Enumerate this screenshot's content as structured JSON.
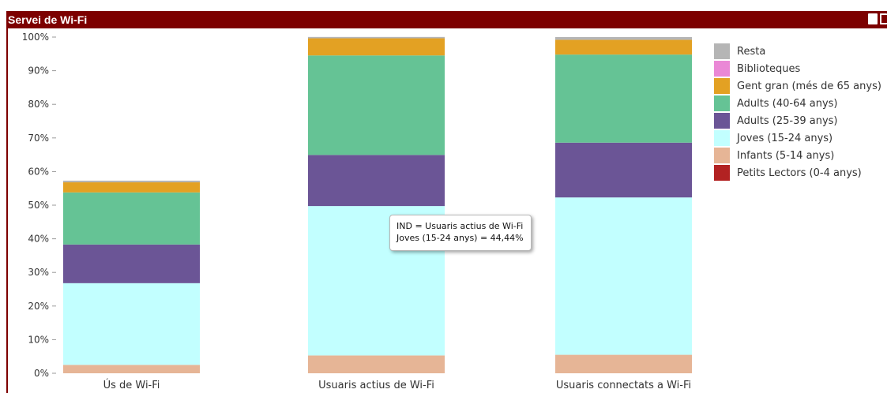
{
  "window": {
    "title": "Servei de Wi-Fi",
    "print_icon": "print-icon",
    "export_icon": "export-icon"
  },
  "tooltip": {
    "line1": "IND = Usuaris actius de Wi-Fi",
    "line2": "Joves (15-24 anys) = 44,44%"
  },
  "chart_data": {
    "type": "bar",
    "stacked": true,
    "title": "",
    "xlabel": "",
    "ylabel": "",
    "ylim": [
      0,
      100
    ],
    "y_ticks": [
      "0%",
      "10%",
      "20%",
      "30%",
      "40%",
      "50%",
      "60%",
      "70%",
      "80%",
      "90%",
      "100%"
    ],
    "categories": [
      "Ús de Wi-Fi",
      "Usuaris actius de Wi-Fi",
      "Usuaris connectats a Wi-Fi"
    ],
    "legend_position": "right",
    "grid": false,
    "series": [
      {
        "name": "Petits Lectors (0-4 anys)",
        "color": "#b22222",
        "values": [
          0,
          0,
          0
        ]
      },
      {
        "name": "Infants (5-14 anys)",
        "color": "#e6b596",
        "values": [
          2.5,
          5.3,
          5.5
        ]
      },
      {
        "name": "Joves (15-24 anys)",
        "color": "#c2ffff",
        "values": [
          24.3,
          44.44,
          46.8
        ]
      },
      {
        "name": "Adults (25-39 anys)",
        "color": "#6b5596",
        "values": [
          11.5,
          15.2,
          16.3
        ]
      },
      {
        "name": "Adults (40-64 anys)",
        "color": "#65c395",
        "values": [
          15.5,
          29.6,
          26.2
        ]
      },
      {
        "name": "Gent gran (més de 65 anys)",
        "color": "#e3a123",
        "values": [
          3.0,
          5.1,
          4.4
        ]
      },
      {
        "name": "Biblioteques",
        "color": "#ea88d6",
        "values": [
          0,
          0,
          0
        ]
      },
      {
        "name": "Resta",
        "color": "#b5b5b5",
        "values": [
          0.5,
          0.4,
          0.8
        ]
      }
    ]
  }
}
